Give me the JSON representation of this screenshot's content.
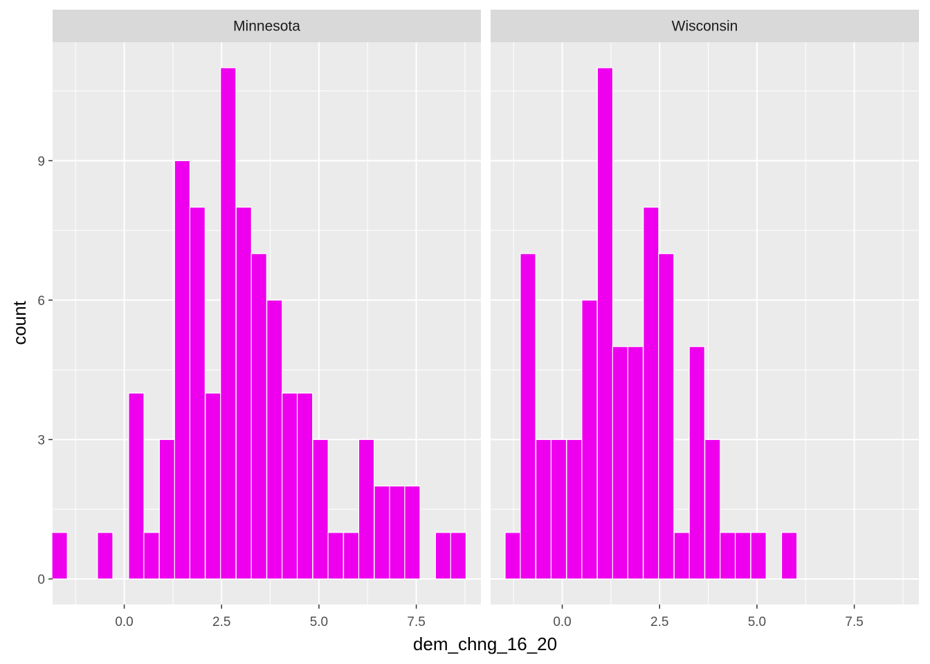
{
  "chart_data": {
    "type": "bar",
    "chart_kind": "faceted histogram",
    "xlabel": "dem_chng_16_20",
    "ylabel": "count",
    "xlim": [
      -1.84,
      9.16
    ],
    "ylim": [
      -0.55,
      11.55
    ],
    "x_ticks": [
      0.0,
      2.5,
      5.0,
      7.5
    ],
    "x_tick_labels": [
      "0.0",
      "2.5",
      "5.0",
      "7.5"
    ],
    "y_ticks": [
      0,
      3,
      6,
      9
    ],
    "y_tick_labels": [
      "0",
      "3",
      "6",
      "9"
    ],
    "bin_width": 0.394,
    "fill_color": "#ee00ee",
    "bar_outline_color": "#ffffff",
    "panel_background": "#ebebeb",
    "strip_background": "#d9d9d9",
    "grid": true,
    "legend": "none",
    "facets": [
      {
        "name": "Minnesota",
        "bins": [
          {
            "x": -1.66,
            "count": 1
          },
          {
            "x": -0.49,
            "count": 1
          },
          {
            "x": 0.31,
            "count": 4
          },
          {
            "x": 0.7,
            "count": 1
          },
          {
            "x": 1.1,
            "count": 3
          },
          {
            "x": 1.49,
            "count": 9
          },
          {
            "x": 1.88,
            "count": 8
          },
          {
            "x": 2.28,
            "count": 4
          },
          {
            "x": 2.67,
            "count": 11
          },
          {
            "x": 3.07,
            "count": 8
          },
          {
            "x": 3.46,
            "count": 7
          },
          {
            "x": 3.86,
            "count": 6
          },
          {
            "x": 4.25,
            "count": 4
          },
          {
            "x": 4.64,
            "count": 4
          },
          {
            "x": 5.04,
            "count": 3
          },
          {
            "x": 5.43,
            "count": 1
          },
          {
            "x": 5.83,
            "count": 1
          },
          {
            "x": 6.22,
            "count": 3
          },
          {
            "x": 6.62,
            "count": 2
          },
          {
            "x": 7.01,
            "count": 2
          },
          {
            "x": 7.4,
            "count": 2
          },
          {
            "x": 8.19,
            "count": 1
          },
          {
            "x": 8.58,
            "count": 1
          }
        ]
      },
      {
        "name": "Wisconsin",
        "bins": [
          {
            "x": -1.27,
            "count": 1
          },
          {
            "x": -0.88,
            "count": 7
          },
          {
            "x": -0.48,
            "count": 3
          },
          {
            "x": -0.09,
            "count": 3
          },
          {
            "x": 0.31,
            "count": 3
          },
          {
            "x": 0.7,
            "count": 6
          },
          {
            "x": 1.1,
            "count": 11
          },
          {
            "x": 1.49,
            "count": 5
          },
          {
            "x": 1.88,
            "count": 5
          },
          {
            "x": 2.28,
            "count": 8
          },
          {
            "x": 2.67,
            "count": 7
          },
          {
            "x": 3.07,
            "count": 1
          },
          {
            "x": 3.46,
            "count": 5
          },
          {
            "x": 3.86,
            "count": 3
          },
          {
            "x": 4.25,
            "count": 1
          },
          {
            "x": 4.64,
            "count": 1
          },
          {
            "x": 5.04,
            "count": 1
          },
          {
            "x": 5.83,
            "count": 1
          }
        ]
      }
    ]
  }
}
